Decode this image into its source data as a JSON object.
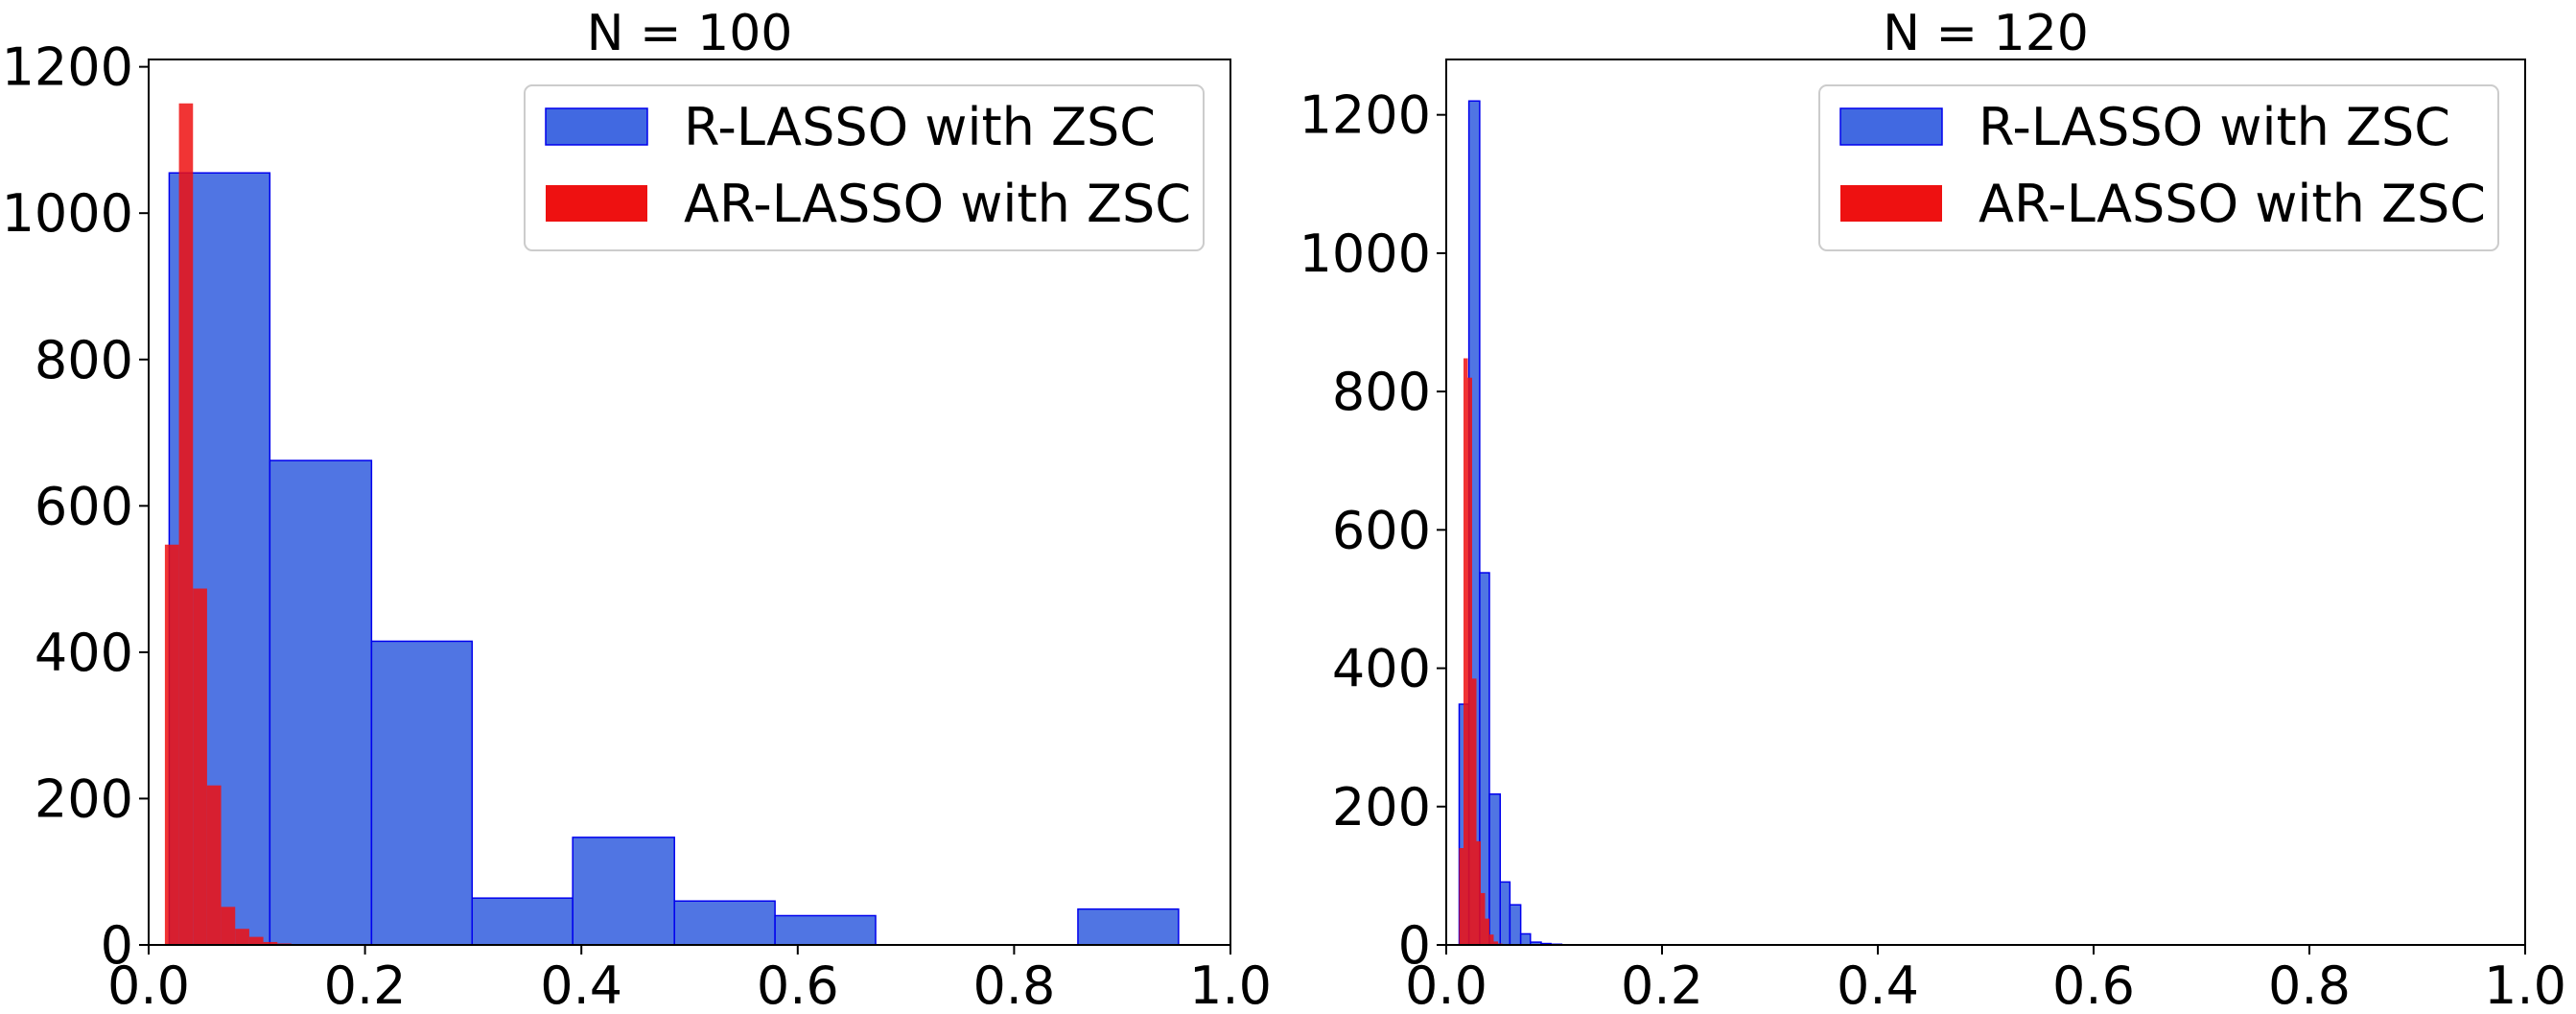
{
  "colors": {
    "blue": "#4169E1",
    "blue_edge": "#0000EE",
    "red": "#EE1111"
  },
  "chart_data": [
    {
      "type": "histogram",
      "title": "N = 100",
      "xlim": [
        0,
        1
      ],
      "ylim": [
        0,
        1210
      ],
      "xticks": [
        "0.0",
        "0.2",
        "0.4",
        "0.6",
        "0.8",
        "1.0"
      ],
      "yticks": [
        "0",
        "200",
        "400",
        "600",
        "800",
        "1000",
        "1200"
      ],
      "legend": {
        "placement": "top-right",
        "entries": [
          "R-LASSO with ZSC",
          "AR-LASSO with ZSC"
        ]
      },
      "series": [
        {
          "name": "R-LASSO with ZSC",
          "color": "blue",
          "bins": [
            {
              "x0": 0.019,
              "x1": 0.112,
              "count": 1055
            },
            {
              "x0": 0.112,
              "x1": 0.206,
              "count": 662
            },
            {
              "x0": 0.206,
              "x1": 0.299,
              "count": 415
            },
            {
              "x0": 0.299,
              "x1": 0.392,
              "count": 64
            },
            {
              "x0": 0.392,
              "x1": 0.486,
              "count": 147
            },
            {
              "x0": 0.486,
              "x1": 0.579,
              "count": 60
            },
            {
              "x0": 0.579,
              "x1": 0.672,
              "count": 40
            },
            {
              "x0": 0.672,
              "x1": 0.766,
              "count": 0
            },
            {
              "x0": 0.766,
              "x1": 0.859,
              "count": 0
            },
            {
              "x0": 0.859,
              "x1": 0.952,
              "count": 49
            }
          ]
        },
        {
          "name": "AR-LASSO with ZSC",
          "color": "red",
          "bins": [
            {
              "x0": 0.015,
              "x1": 0.028,
              "count": 547
            },
            {
              "x0": 0.028,
              "x1": 0.041,
              "count": 1150
            },
            {
              "x0": 0.041,
              "x1": 0.054,
              "count": 487
            },
            {
              "x0": 0.054,
              "x1": 0.067,
              "count": 218
            },
            {
              "x0": 0.067,
              "x1": 0.08,
              "count": 52
            },
            {
              "x0": 0.08,
              "x1": 0.093,
              "count": 22
            },
            {
              "x0": 0.093,
              "x1": 0.106,
              "count": 11
            },
            {
              "x0": 0.106,
              "x1": 0.119,
              "count": 4
            },
            {
              "x0": 0.119,
              "x1": 0.132,
              "count": 2
            },
            {
              "x0": 0.132,
              "x1": 0.145,
              "count": 1
            }
          ]
        }
      ]
    },
    {
      "type": "histogram",
      "title": "N = 120",
      "xlim": [
        0,
        1
      ],
      "ylim": [
        0,
        1280
      ],
      "xticks": [
        "0.0",
        "0.2",
        "0.4",
        "0.6",
        "0.8",
        "1.0"
      ],
      "yticks": [
        "0",
        "200",
        "400",
        "600",
        "800",
        "1000",
        "1200"
      ],
      "legend": {
        "placement": "top-right",
        "entries": [
          "R-LASSO with ZSC",
          "AR-LASSO with ZSC"
        ]
      },
      "series": [
        {
          "name": "R-LASSO with ZSC",
          "color": "blue",
          "bins": [
            {
              "x0": 0.012,
              "x1": 0.021,
              "count": 348
            },
            {
              "x0": 0.021,
              "x1": 0.031,
              "count": 1220
            },
            {
              "x0": 0.031,
              "x1": 0.04,
              "count": 538
            },
            {
              "x0": 0.04,
              "x1": 0.05,
              "count": 218
            },
            {
              "x0": 0.05,
              "x1": 0.059,
              "count": 91
            },
            {
              "x0": 0.059,
              "x1": 0.069,
              "count": 58
            },
            {
              "x0": 0.069,
              "x1": 0.078,
              "count": 16
            },
            {
              "x0": 0.078,
              "x1": 0.088,
              "count": 4
            },
            {
              "x0": 0.088,
              "x1": 0.097,
              "count": 2
            },
            {
              "x0": 0.097,
              "x1": 0.107,
              "count": 1
            }
          ]
        },
        {
          "name": "AR-LASSO with ZSC",
          "color": "red",
          "bins": [
            {
              "x0": 0.012,
              "x1": 0.016,
              "count": 140
            },
            {
              "x0": 0.016,
              "x1": 0.02,
              "count": 848
            },
            {
              "x0": 0.02,
              "x1": 0.024,
              "count": 820
            },
            {
              "x0": 0.024,
              "x1": 0.028,
              "count": 385
            },
            {
              "x0": 0.028,
              "x1": 0.032,
              "count": 150
            },
            {
              "x0": 0.032,
              "x1": 0.036,
              "count": 75
            },
            {
              "x0": 0.036,
              "x1": 0.04,
              "count": 38
            },
            {
              "x0": 0.04,
              "x1": 0.044,
              "count": 15
            },
            {
              "x0": 0.044,
              "x1": 0.048,
              "count": 5
            },
            {
              "x0": 0.048,
              "x1": 0.052,
              "count": 2
            }
          ]
        }
      ]
    }
  ]
}
